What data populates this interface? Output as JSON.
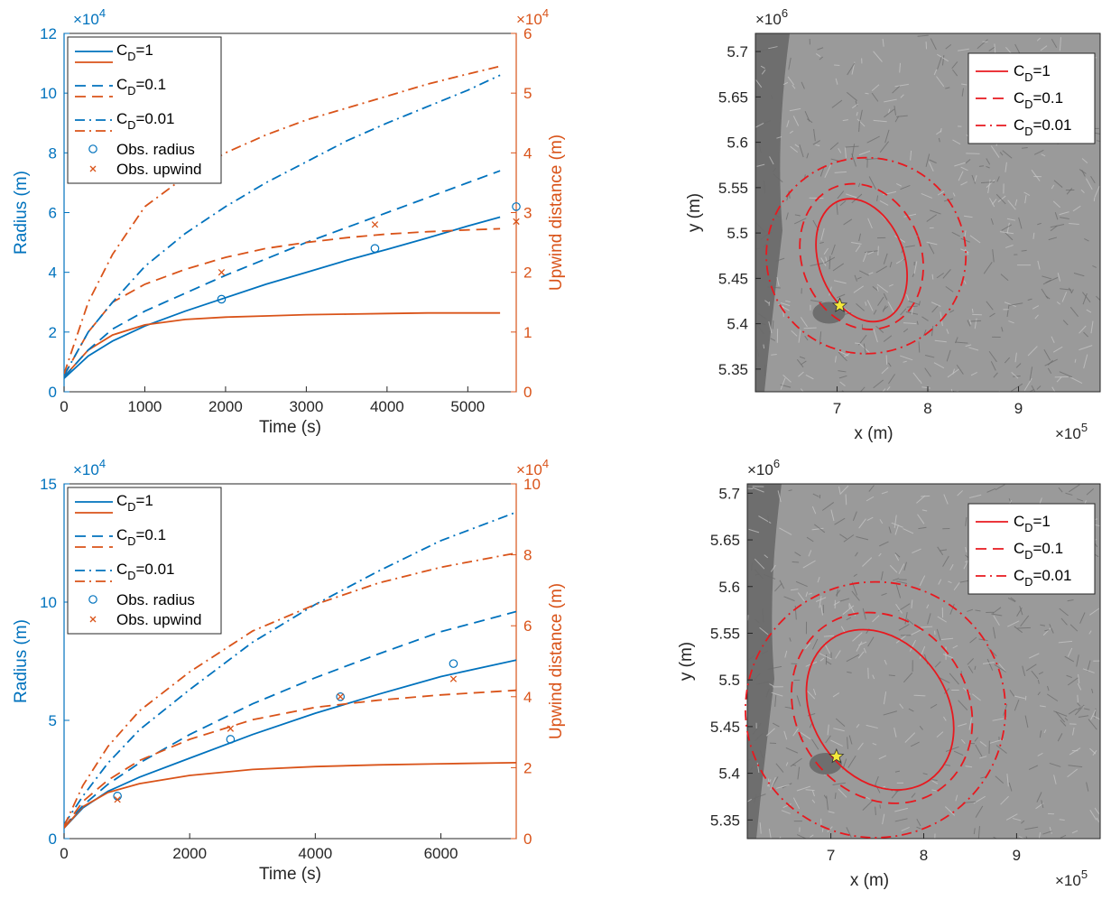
{
  "colors": {
    "radius": "#0072BD",
    "upwind": "#D95319",
    "contour": "#E8191F",
    "star": "#F5E93A",
    "terrain": "#9a9a9a",
    "water": "#6e6e6e"
  },
  "chart_data": [
    {
      "type": "line",
      "panel": "top-left",
      "xlabel": "Time (s)",
      "ylabel_left": "Radius (m)",
      "ylabel_right": "Upwind distance (m)",
      "xlim": [
        0,
        5600
      ],
      "ylim_left": [
        0,
        120000
      ],
      "ylim_right": [
        0,
        60000
      ],
      "xticks": [
        "0",
        "1000",
        "2000",
        "3000",
        "4000",
        "5000"
      ],
      "yticks_left": [
        "0",
        "2",
        "4",
        "6",
        "8",
        "10",
        "12"
      ],
      "yticks_right": [
        "0",
        "1",
        "2",
        "3",
        "4",
        "5",
        "6"
      ],
      "exp_left": "×10",
      "exp_left_pow": "4",
      "exp_right": "×10",
      "exp_right_pow": "4",
      "legend": [
        "CD=1",
        "CD=0.1",
        "CD=0.01",
        "Obs. radius",
        "Obs. upwind"
      ],
      "x": [
        0,
        300,
        600,
        1000,
        1500,
        2000,
        2500,
        3000,
        3500,
        4000,
        4500,
        5000,
        5400
      ],
      "series": [
        {
          "name": "CD=1",
          "axis": "left",
          "style": "solid",
          "values": [
            4500,
            12000,
            17000,
            22000,
            27000,
            31500,
            36000,
            40000,
            44000,
            47700,
            51500,
            55500,
            58500
          ]
        },
        {
          "name": "CD=1",
          "axis": "right",
          "style": "solid",
          "values": [
            2500,
            7000,
            9500,
            11200,
            12100,
            12500,
            12700,
            12900,
            13000,
            13100,
            13200,
            13200,
            13200
          ]
        },
        {
          "name": "CD=0.1",
          "axis": "left",
          "style": "dashed",
          "values": [
            5000,
            14000,
            21000,
            27000,
            33000,
            39000,
            44500,
            50000,
            55000,
            60000,
            65000,
            70000,
            74000
          ]
        },
        {
          "name": "CD=0.1",
          "axis": "right",
          "style": "dashed",
          "values": [
            2700,
            10000,
            15000,
            18000,
            20500,
            22500,
            24000,
            25000,
            25800,
            26400,
            26800,
            27100,
            27300
          ]
        },
        {
          "name": "CD=0.01",
          "axis": "left",
          "style": "dashdot",
          "values": [
            5500,
            20000,
            30000,
            42000,
            53000,
            62000,
            70000,
            77000,
            84000,
            90000,
            95500,
            101000,
            106000
          ]
        },
        {
          "name": "CD=0.01",
          "axis": "right",
          "style": "dashdot",
          "values": [
            3000,
            15000,
            23000,
            31000,
            36000,
            40000,
            43000,
            45500,
            47500,
            49500,
            51500,
            53200,
            54500
          ]
        }
      ],
      "observations": [
        {
          "name": "Obs. radius",
          "axis": "left",
          "marker": "o",
          "x": [
            1950,
            3850,
            5600
          ],
          "y": [
            31000,
            48000,
            62000
          ]
        },
        {
          "name": "Obs. upwind",
          "axis": "right",
          "marker": "x",
          "x": [
            1950,
            3850,
            5600
          ],
          "y": [
            20000,
            28000,
            28500
          ]
        }
      ]
    },
    {
      "type": "line",
      "panel": "bottom-left",
      "xlabel": "Time (s)",
      "ylabel_left": "Radius (m)",
      "ylabel_right": "Upwind distance (m)",
      "xlim": [
        0,
        7200
      ],
      "ylim_left": [
        0,
        150000
      ],
      "ylim_right": [
        0,
        100000
      ],
      "xticks": [
        "0",
        "2000",
        "4000",
        "6000"
      ],
      "yticks_left": [
        "0",
        "5",
        "10",
        "15"
      ],
      "yticks_right": [
        "0",
        "2",
        "4",
        "6",
        "8",
        "10"
      ],
      "exp_left": "×10",
      "exp_left_pow": "4",
      "exp_right": "×10",
      "exp_right_pow": "4",
      "legend": [
        "CD=1",
        "CD=0.1",
        "CD=0.01",
        "Obs. radius",
        "Obs. upwind"
      ],
      "x": [
        0,
        300,
        700,
        1200,
        2000,
        3000,
        4000,
        5000,
        6000,
        7200
      ],
      "series": [
        {
          "name": "CD=1",
          "axis": "left",
          "style": "solid",
          "values": [
            4500,
            13000,
            20000,
            26000,
            34000,
            44000,
            53000,
            61000,
            68500,
            75500
          ]
        },
        {
          "name": "CD=1",
          "axis": "right",
          "style": "solid",
          "values": [
            3000,
            9000,
            13000,
            15500,
            17800,
            19500,
            20300,
            20800,
            21100,
            21400
          ]
        },
        {
          "name": "CD=0.1",
          "axis": "left",
          "style": "dashed",
          "values": [
            5000,
            14000,
            23000,
            32000,
            44000,
            57000,
            68000,
            78000,
            87500,
            96000
          ]
        },
        {
          "name": "CD=0.1",
          "axis": "right",
          "style": "dashed",
          "values": [
            3000,
            10500,
            16500,
            22000,
            28000,
            33500,
            37000,
            39000,
            40500,
            41800
          ]
        },
        {
          "name": "CD=0.01",
          "axis": "left",
          "style": "dashdot",
          "values": [
            6000,
            18000,
            32000,
            46000,
            63000,
            83000,
            99000,
            113000,
            126000,
            138000
          ]
        },
        {
          "name": "CD=0.01",
          "axis": "right",
          "style": "dashdot",
          "values": [
            3500,
            15000,
            26000,
            36000,
            47000,
            58500,
            66000,
            72000,
            76500,
            80500
          ]
        }
      ],
      "observations": [
        {
          "name": "Obs. radius",
          "axis": "left",
          "marker": "o",
          "x": [
            850,
            2650,
            4400,
            6200
          ],
          "y": [
            18000,
            42000,
            60000,
            74000
          ]
        },
        {
          "name": "Obs. upwind",
          "axis": "right",
          "marker": "x",
          "x": [
            850,
            2650,
            4400,
            6200
          ],
          "y": [
            11000,
            31000,
            40000,
            45000
          ]
        }
      ]
    },
    {
      "type": "map_contour",
      "panel": "top-right",
      "xlabel": "x (m)",
      "ylabel": "y (m)",
      "xlim": [
        610000,
        990000
      ],
      "ylim": [
        5325000,
        5720000
      ],
      "xticks": [
        "7",
        "8",
        "9"
      ],
      "yticks": [
        "5.35",
        "5.4",
        "5.45",
        "5.5",
        "5.55",
        "5.6",
        "5.65",
        "5.7"
      ],
      "x_exp": "×10",
      "x_exp_pow": "5",
      "y_exp": "×10",
      "y_exp_pow": "6",
      "legend": [
        "CD=1",
        "CD=0.1",
        "CD=0.01"
      ],
      "vent": {
        "x": 703000,
        "y": 5420000
      },
      "contours": [
        {
          "name": "CD=1",
          "style": "solid",
          "cx": 727000,
          "cy": 5470000,
          "rx": 47000,
          "ry": 70000,
          "angle": -20
        },
        {
          "name": "CD=0.1",
          "style": "dashed",
          "cx": 727000,
          "cy": 5474000,
          "rx": 66000,
          "ry": 82000,
          "angle": -20
        },
        {
          "name": "CD=0.01",
          "style": "dashdot",
          "cx": 732000,
          "cy": 5475000,
          "rx": 110000,
          "ry": 108000,
          "angle": 0
        }
      ]
    },
    {
      "type": "map_contour",
      "panel": "bottom-right",
      "xlabel": "x (m)",
      "ylabel": "y (m)",
      "xlim": [
        610000,
        990000
      ],
      "ylim": [
        5330000,
        5710000
      ],
      "xticks": [
        "7",
        "8",
        "9"
      ],
      "yticks": [
        "5.35",
        "5.4",
        "5.45",
        "5.5",
        "5.55",
        "5.6",
        "5.65",
        "5.7"
      ],
      "x_exp": "×10",
      "x_exp_pow": "5",
      "y_exp": "×10",
      "y_exp_pow": "6",
      "legend": [
        "CD=1",
        "CD=0.1",
        "CD=0.01"
      ],
      "vent": {
        "x": 706000,
        "y": 5418000
      },
      "contours": [
        {
          "name": "CD=1",
          "style": "solid",
          "cx": 753000,
          "cy": 5468000,
          "rx": 72000,
          "ry": 92000,
          "angle": -35
        },
        {
          "name": "CD=0.1",
          "style": "dashed",
          "cx": 755000,
          "cy": 5470000,
          "rx": 92000,
          "ry": 107000,
          "angle": -35
        },
        {
          "name": "CD=0.01",
          "style": "dashdot",
          "cx": 748000,
          "cy": 5468000,
          "rx": 140000,
          "ry": 137000,
          "angle": 0
        }
      ]
    }
  ]
}
